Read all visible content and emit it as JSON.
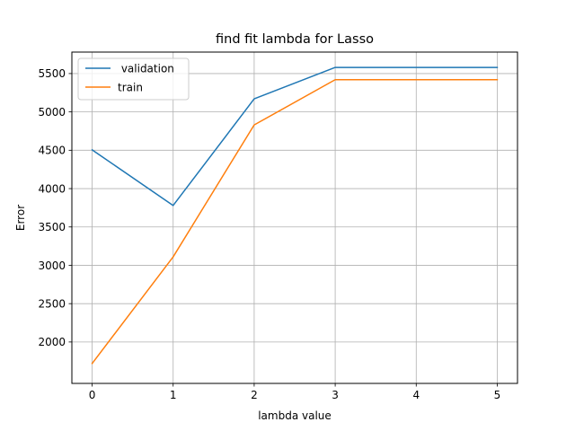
{
  "chart_data": {
    "type": "line",
    "title": "find fit lambda for  Lasso",
    "xlabel": "lambda value",
    "ylabel": "Error",
    "x": [
      0,
      1,
      2,
      3,
      4,
      5
    ],
    "xticks": [
      "0",
      "1",
      "2",
      "3",
      "4",
      "5"
    ],
    "yticks": [
      "2000",
      "2500",
      "3000",
      "3500",
      "4000",
      "4500",
      "5000",
      "5500"
    ],
    "xlim": [
      -0.25,
      5.25
    ],
    "ylim": [
      1460,
      5780
    ],
    "grid": true,
    "legend_position": "top-left",
    "series": [
      {
        "name": " validation",
        "color": "#1f77b4",
        "values": [
          4505,
          3780,
          5170,
          5580,
          5580,
          5580
        ]
      },
      {
        "name": "train",
        "color": "#ff7f0e",
        "values": [
          1720,
          3110,
          4830,
          5420,
          5420,
          5420
        ]
      }
    ]
  }
}
